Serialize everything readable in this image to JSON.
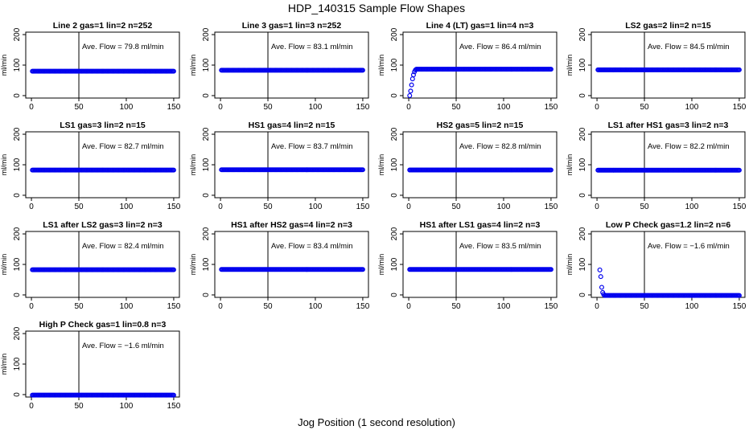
{
  "figure": {
    "title": "HDP_140315  Sample Flow Shapes",
    "xlabel": "Jog Position (1 second resolution)"
  },
  "chart_data": [
    {
      "type": "scatter",
      "title": "Line 2 gas=1 lin=2 n=252",
      "ylabel": "ml/min",
      "annotation": "Ave. Flow =  79.8  ml/min",
      "mean": 79.8,
      "xlim": [
        0,
        150
      ],
      "ylim": [
        0,
        200
      ],
      "xticks": [
        0,
        50,
        100,
        150
      ],
      "yticks": [
        0,
        100,
        200
      ],
      "ytick_labels": [
        "0",
        "100",
        "200"
      ],
      "vline_x": 50,
      "series": [
        {
          "x_range": [
            1,
            150
          ],
          "y_constant": 79.8
        }
      ],
      "marker_color": "#0000ee"
    },
    {
      "type": "scatter",
      "title": "Line 3 gas=1 lin=3 n=252",
      "ylabel": "ml/min",
      "annotation": "Ave. Flow =  83.1  ml/min",
      "mean": 83.1,
      "xlim": [
        0,
        150
      ],
      "ylim": [
        0,
        200
      ],
      "xticks": [
        0,
        50,
        100,
        150
      ],
      "yticks": [
        0,
        100,
        200
      ],
      "ytick_labels": [
        "0",
        "100",
        "200"
      ],
      "vline_x": 50,
      "series": [
        {
          "x_range": [
            1,
            150
          ],
          "y_constant": 83.1
        }
      ],
      "marker_color": "#0000ee"
    },
    {
      "type": "scatter",
      "title": "Line 4 (LT) gas=1 lin=4 n=3",
      "ylabel": "ml/min",
      "annotation": "Ave. Flow =  86.4  ml/min",
      "mean": 86.4,
      "xlim": [
        0,
        150
      ],
      "ylim": [
        0,
        200
      ],
      "xticks": [
        0,
        50,
        100,
        150
      ],
      "yticks": [
        0,
        100,
        200
      ],
      "ytick_labels": [
        "0",
        "100",
        "200"
      ],
      "vline_x": 50,
      "series": [
        {
          "x_range": [
            8,
            150
          ],
          "y_constant": 86.4,
          "lead_points": [
            [
              1,
              0
            ],
            [
              2,
              15
            ],
            [
              3,
              35
            ],
            [
              4,
              55
            ],
            [
              5,
              68
            ],
            [
              6,
              78
            ],
            [
              7,
              84
            ]
          ]
        }
      ],
      "marker_color": "#0000ee"
    },
    {
      "type": "scatter",
      "title": "LS2 gas=2 lin=2 n=15",
      "ylabel": "ml/min",
      "annotation": "Ave. Flow =  84.5  ml/min",
      "mean": 84.5,
      "xlim": [
        0,
        150
      ],
      "ylim": [
        0,
        200
      ],
      "xticks": [
        0,
        50,
        100,
        150
      ],
      "yticks": [
        0,
        100,
        200
      ],
      "ytick_labels": [
        "0",
        "100",
        "200"
      ],
      "vline_x": 50,
      "series": [
        {
          "x_range": [
            1,
            150
          ],
          "y_constant": 84.5
        }
      ],
      "marker_color": "#0000ee"
    },
    {
      "type": "scatter",
      "title": "LS1 gas=3 lin=2 n=15",
      "ylabel": "ml/min",
      "annotation": "Ave. Flow =  82.7  ml/min",
      "mean": 82.7,
      "xlim": [
        0,
        150
      ],
      "ylim": [
        0,
        200
      ],
      "xticks": [
        0,
        50,
        100,
        150
      ],
      "yticks": [
        0,
        100,
        200
      ],
      "ytick_labels": [
        "0",
        "100",
        "200"
      ],
      "vline_x": 50,
      "series": [
        {
          "x_range": [
            1,
            150
          ],
          "y_constant": 82.7
        }
      ],
      "marker_color": "#0000ee"
    },
    {
      "type": "scatter",
      "title": "HS1 gas=4 lin=2 n=15",
      "ylabel": "ml/min",
      "annotation": "Ave. Flow =  83.7  ml/min",
      "mean": 83.7,
      "xlim": [
        0,
        150
      ],
      "ylim": [
        0,
        200
      ],
      "xticks": [
        0,
        50,
        100,
        150
      ],
      "yticks": [
        0,
        100,
        200
      ],
      "ytick_labels": [
        "0",
        "100",
        "200"
      ],
      "vline_x": 50,
      "series": [
        {
          "x_range": [
            1,
            150
          ],
          "y_constant": 83.7
        }
      ],
      "marker_color": "#0000ee"
    },
    {
      "type": "scatter",
      "title": "HS2 gas=5 lin=2 n=15",
      "ylabel": "ml/min",
      "annotation": "Ave. Flow =  82.8  ml/min",
      "mean": 82.8,
      "xlim": [
        0,
        150
      ],
      "ylim": [
        0,
        200
      ],
      "xticks": [
        0,
        50,
        100,
        150
      ],
      "yticks": [
        0,
        100,
        200
      ],
      "ytick_labels": [
        "0",
        "100",
        "200"
      ],
      "vline_x": 50,
      "series": [
        {
          "x_range": [
            1,
            150
          ],
          "y_constant": 82.8
        }
      ],
      "marker_color": "#0000ee"
    },
    {
      "type": "scatter",
      "title": "LS1 after HS1 gas=3 lin=2 n=3",
      "ylabel": "ml/min",
      "annotation": "Ave. Flow =  82.2  ml/min",
      "mean": 82.2,
      "xlim": [
        0,
        150
      ],
      "ylim": [
        0,
        200
      ],
      "xticks": [
        0,
        50,
        100,
        150
      ],
      "yticks": [
        0,
        100,
        200
      ],
      "ytick_labels": [
        "0",
        "100",
        "200"
      ],
      "vline_x": 50,
      "series": [
        {
          "x_range": [
            1,
            150
          ],
          "y_constant": 82.2
        }
      ],
      "marker_color": "#0000ee"
    },
    {
      "type": "scatter",
      "title": "LS1 after LS2 gas=3 lin=2 n=3",
      "ylabel": "ml/min",
      "annotation": "Ave. Flow =  82.4  ml/min",
      "mean": 82.4,
      "xlim": [
        0,
        150
      ],
      "ylim": [
        0,
        200
      ],
      "xticks": [
        0,
        50,
        100,
        150
      ],
      "yticks": [
        0,
        100,
        200
      ],
      "ytick_labels": [
        "0",
        "100",
        "200"
      ],
      "vline_x": 50,
      "series": [
        {
          "x_range": [
            1,
            150
          ],
          "y_constant": 82.4
        }
      ],
      "marker_color": "#0000ee"
    },
    {
      "type": "scatter",
      "title": "HS1 after HS2 gas=4 lin=2 n=3",
      "ylabel": "ml/min",
      "annotation": "Ave. Flow =  83.4  ml/min",
      "mean": 83.4,
      "xlim": [
        0,
        150
      ],
      "ylim": [
        0,
        200
      ],
      "xticks": [
        0,
        50,
        100,
        150
      ],
      "yticks": [
        0,
        100,
        200
      ],
      "ytick_labels": [
        "0",
        "100",
        "200"
      ],
      "vline_x": 50,
      "series": [
        {
          "x_range": [
            1,
            150
          ],
          "y_constant": 83.4
        }
      ],
      "marker_color": "#0000ee"
    },
    {
      "type": "scatter",
      "title": "HS1 after LS1 gas=4 lin=2 n=3",
      "ylabel": "ml/min",
      "annotation": "Ave. Flow =  83.5  ml/min",
      "mean": 83.5,
      "xlim": [
        0,
        150
      ],
      "ylim": [
        0,
        200
      ],
      "xticks": [
        0,
        50,
        100,
        150
      ],
      "yticks": [
        0,
        100,
        200
      ],
      "ytick_labels": [
        "0",
        "100",
        "200"
      ],
      "vline_x": 50,
      "series": [
        {
          "x_range": [
            1,
            150
          ],
          "y_constant": 83.5
        }
      ],
      "marker_color": "#0000ee"
    },
    {
      "type": "scatter",
      "title": "Low P Check gas=1.2 lin=2 n=6",
      "ylabel": "ml/min",
      "annotation": "Ave. Flow =  −1.6  ml/min",
      "mean": -1.6,
      "xlim": [
        0,
        150
      ],
      "ylim": [
        0,
        200
      ],
      "xticks": [
        0,
        50,
        100,
        150
      ],
      "yticks": [
        0,
        100,
        200
      ],
      "ytick_labels": [
        "0",
        "100",
        "200"
      ],
      "vline_x": 50,
      "series": [
        {
          "x_range": [
            8,
            150
          ],
          "y_constant": -1.6,
          "lead_points": [
            [
              3,
              82
            ],
            [
              4,
              60
            ],
            [
              5,
              25
            ],
            [
              6,
              8
            ],
            [
              7,
              2
            ]
          ]
        }
      ],
      "marker_color": "#0000ee"
    },
    {
      "type": "scatter",
      "title": "High P Check gas=1 lin=0.8 n=3",
      "ylabel": "ml/min",
      "annotation": "Ave. Flow =  −1.6  ml/min",
      "mean": -1.6,
      "xlim": [
        0,
        150
      ],
      "ylim": [
        0,
        200
      ],
      "xticks": [
        0,
        50,
        100,
        150
      ],
      "yticks": [
        0,
        100,
        200
      ],
      "ytick_labels": [
        "0",
        "100",
        "200"
      ],
      "vline_x": 50,
      "series": [
        {
          "x_range": [
            1,
            150
          ],
          "y_constant": -1.6
        }
      ],
      "marker_color": "#0000ee"
    }
  ]
}
